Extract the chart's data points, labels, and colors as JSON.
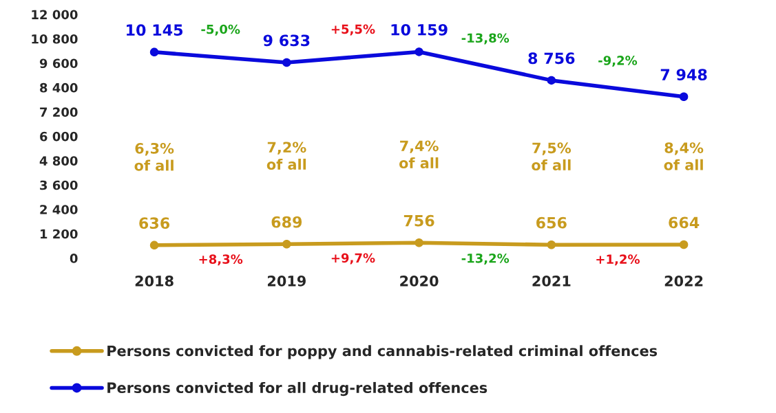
{
  "chart_data": {
    "type": "line",
    "categories": [
      "2018",
      "2019",
      "2020",
      "2021",
      "2022"
    ],
    "series": [
      {
        "name": "Persons convicted for poppy and cannabis-related criminal offences",
        "color": "#c89b1e",
        "values": [
          636,
          689,
          756,
          656,
          664
        ],
        "value_labels": [
          "636",
          "689",
          "756",
          "656",
          "664"
        ]
      },
      {
        "name": "Persons convicted for all drug-related offences",
        "color": "#0a0adc",
        "values": [
          10145,
          9633,
          10159,
          8756,
          7948
        ],
        "value_labels": [
          "10 145",
          "9 633",
          "10 159",
          "8 756",
          "7 948"
        ]
      }
    ],
    "ylim": [
      0,
      12000
    ],
    "yticks": [
      0,
      {
        "value": 1200,
        "label": "1 200"
      },
      {
        "value": 2400,
        "label": "2 400"
      },
      {
        "value": 3600,
        "label": "3 600"
      },
      {
        "value": 4800,
        "label": "4 800"
      },
      {
        "value": 6000,
        "label": "6 000"
      },
      {
        "value": 7200,
        "label": "7 200"
      },
      {
        "value": 8400,
        "label": "8 400"
      },
      {
        "value": 9600,
        "label": "9 600"
      },
      {
        "value": 10800,
        "label": "10 800"
      },
      {
        "value": 12000,
        "label": "12 000"
      }
    ],
    "annotations": [
      "-5,0%",
      "+5,5%",
      "-13,8%",
      "-9,2%",
      "+8,3%",
      "+9,7%",
      "-13,2%",
      "+1,2%",
      "6,3%\nof all",
      "7,2%\nof all",
      "7,4%\nof all",
      "7,5%\nof all",
      "8,4%\nof all"
    ],
    "grid": false,
    "legend": "bottom",
    "marker": "circle",
    "line_style": "solid"
  }
}
